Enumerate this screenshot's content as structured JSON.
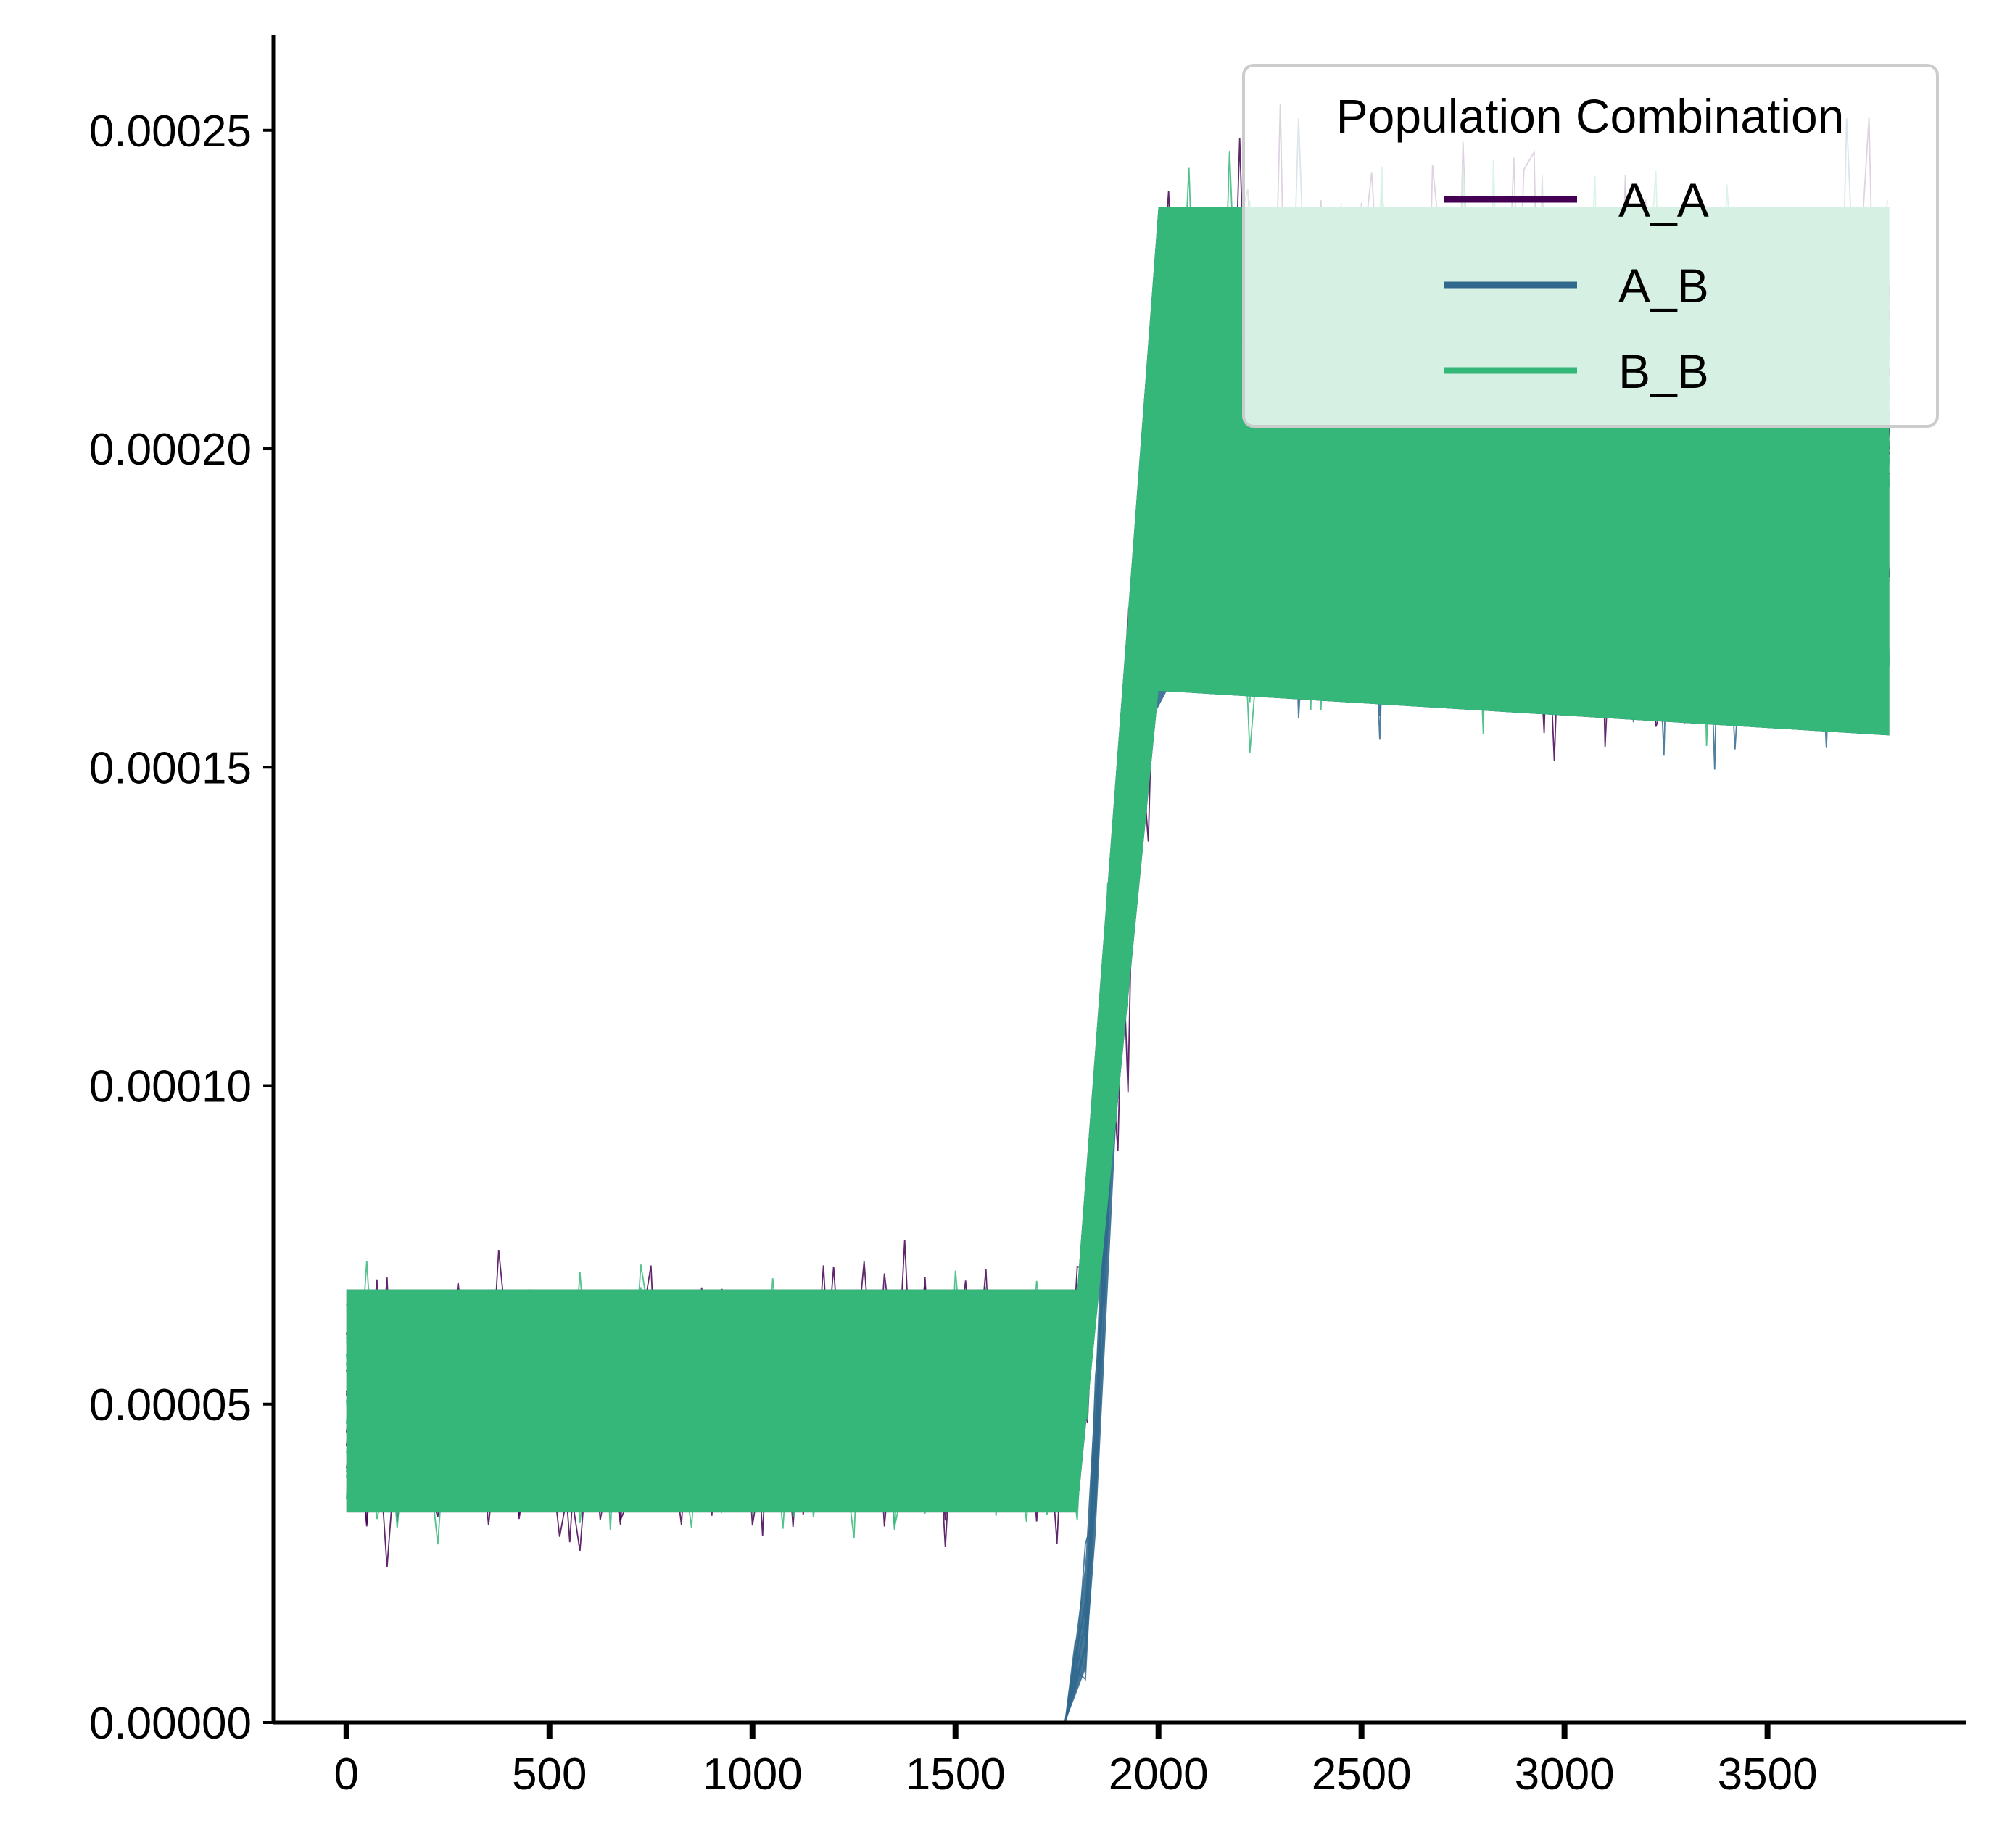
{
  "chart_data": {
    "type": "line",
    "title": "",
    "xlabel": "",
    "ylabel": "",
    "xlim": [
      -180,
      3990
    ],
    "ylim": [
      0.0,
      0.000265
    ],
    "x_ticks": [
      0,
      500,
      1000,
      1500,
      2000,
      2500,
      3000,
      3500
    ],
    "x_tick_labels": [
      "0",
      "500",
      "1000",
      "1500",
      "2000",
      "2500",
      "3000",
      "3500"
    ],
    "y_ticks": [
      0.0,
      5e-05,
      0.0001,
      0.00015,
      0.0002,
      0.00025
    ],
    "y_tick_labels": [
      "0.00000",
      "0.00005",
      "0.00010",
      "0.00015",
      "0.00020",
      "0.00025"
    ],
    "grid": false,
    "legend": {
      "title": "Population Combination",
      "placement": "top-right",
      "entries": [
        "A_A",
        "A_B",
        "B_B"
      ]
    },
    "series": [
      {
        "name": "A_A",
        "color": "#440154",
        "x": [
          0,
          1800,
          2000,
          3800
        ],
        "mean": [
          5e-05,
          5e-05,
          0.0002,
          0.0002
        ],
        "band_low": [
          3.3e-05,
          3.3e-05,
          0.000162,
          0.000155
        ],
        "band_high": [
          6.8e-05,
          6.8e-05,
          0.000238,
          0.000238
        ],
        "extreme_low": [
          2.2e-05,
          2.2e-05,
          0.000134,
          0.000138
        ],
        "extreme_high": [
          7.9e-05,
          7.9e-05,
          0.000252,
          0.000265
        ]
      },
      {
        "name": "A_B",
        "color": "#31688e",
        "x": [
          1770,
          1830,
          1900,
          2000,
          3800
        ],
        "mean": [
          0.0,
          2e-05,
          0.00012,
          0.0002,
          0.0002
        ],
        "band_low": [
          0.0,
          1e-05,
          0.0001,
          0.000162,
          0.000155
        ],
        "band_high": [
          0.0,
          3e-05,
          0.00014,
          0.000238,
          0.000238
        ],
        "extreme_low": [
          0.0,
          0.0,
          9e-05,
          0.000145,
          0.000138
        ],
        "extreme_high": [
          0.0,
          4e-05,
          0.00016,
          0.00025,
          0.000262
        ]
      },
      {
        "name": "B_B",
        "color": "#35b779",
        "x": [
          0,
          1800,
          2000,
          3800
        ],
        "mean": [
          5e-05,
          5e-05,
          0.0002,
          0.0002
        ],
        "band_low": [
          3.3e-05,
          3.3e-05,
          0.000162,
          0.000155
        ],
        "band_high": [
          6.8e-05,
          6.8e-05,
          0.000238,
          0.000238
        ],
        "extreme_low": [
          2.5e-05,
          2.5e-05,
          0.000145,
          0.00014
        ],
        "extreme_high": [
          8e-05,
          8e-05,
          0.000262,
          0.000265
        ]
      }
    ]
  }
}
